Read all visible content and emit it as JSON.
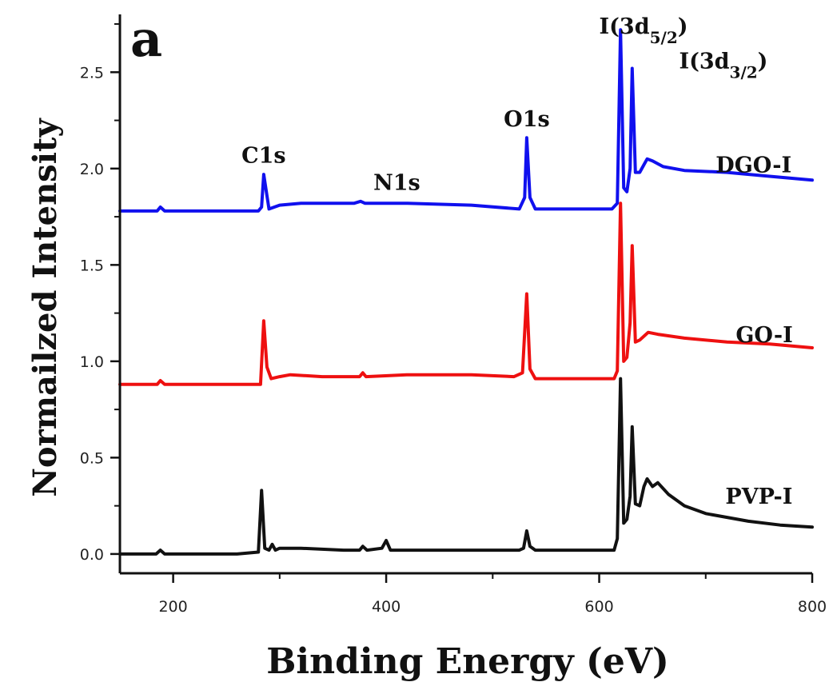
{
  "chart_data": {
    "type": "line",
    "panel_label": "a",
    "xlabel": "Binding Energy (eV)",
    "ylabel": "Normailzed Intensity",
    "xlim": [
      150,
      800
    ],
    "ylim": [
      -0.1,
      2.8
    ],
    "xticks": [
      200,
      400,
      600,
      800
    ],
    "yticks": [
      0.0,
      0.5,
      1.0,
      1.5,
      2.0,
      2.5
    ],
    "ytick_labels": [
      "0.0",
      "0.5",
      "1.0",
      "1.5",
      "2.0",
      "2.5"
    ],
    "grid": false,
    "legend": "none",
    "series": [
      {
        "name": "DGO-I",
        "color": "#1010ee",
        "points": [
          [
            150,
            1.78
          ],
          [
            185,
            1.78
          ],
          [
            188,
            1.8
          ],
          [
            192,
            1.78
          ],
          [
            260,
            1.78
          ],
          [
            280,
            1.78
          ],
          [
            283,
            1.8
          ],
          [
            285,
            1.97
          ],
          [
            288,
            1.86
          ],
          [
            290,
            1.79
          ],
          [
            300,
            1.81
          ],
          [
            320,
            1.82
          ],
          [
            370,
            1.82
          ],
          [
            376,
            1.83
          ],
          [
            380,
            1.82
          ],
          [
            420,
            1.82
          ],
          [
            480,
            1.81
          ],
          [
            525,
            1.79
          ],
          [
            530,
            1.85
          ],
          [
            532,
            2.16
          ],
          [
            535,
            1.85
          ],
          [
            540,
            1.79
          ],
          [
            600,
            1.79
          ],
          [
            612,
            1.79
          ],
          [
            617,
            1.82
          ],
          [
            620,
            2.72
          ],
          [
            623,
            1.9
          ],
          [
            626,
            1.88
          ],
          [
            629,
            2.0
          ],
          [
            631,
            2.52
          ],
          [
            634,
            1.98
          ],
          [
            638,
            1.98
          ],
          [
            642,
            2.02
          ],
          [
            645,
            2.05
          ],
          [
            650,
            2.04
          ],
          [
            660,
            2.01
          ],
          [
            680,
            1.99
          ],
          [
            720,
            1.98
          ],
          [
            760,
            1.96
          ],
          [
            800,
            1.94
          ]
        ],
        "label_xy": [
          745,
          1.98
        ]
      },
      {
        "name": "GO-I",
        "color": "#ee1010",
        "points": [
          [
            150,
            0.88
          ],
          [
            185,
            0.88
          ],
          [
            188,
            0.9
          ],
          [
            192,
            0.88
          ],
          [
            270,
            0.88
          ],
          [
            282,
            0.88
          ],
          [
            285,
            1.21
          ],
          [
            288,
            0.97
          ],
          [
            292,
            0.91
          ],
          [
            300,
            0.92
          ],
          [
            310,
            0.93
          ],
          [
            340,
            0.92
          ],
          [
            375,
            0.92
          ],
          [
            378,
            0.94
          ],
          [
            381,
            0.92
          ],
          [
            420,
            0.93
          ],
          [
            480,
            0.93
          ],
          [
            520,
            0.92
          ],
          [
            528,
            0.94
          ],
          [
            532,
            1.35
          ],
          [
            535,
            0.96
          ],
          [
            540,
            0.91
          ],
          [
            600,
            0.91
          ],
          [
            614,
            0.91
          ],
          [
            617,
            0.95
          ],
          [
            620,
            1.82
          ],
          [
            623,
            1.0
          ],
          [
            626,
            1.02
          ],
          [
            629,
            1.2
          ],
          [
            631,
            1.6
          ],
          [
            634,
            1.1
          ],
          [
            638,
            1.11
          ],
          [
            642,
            1.13
          ],
          [
            646,
            1.15
          ],
          [
            655,
            1.14
          ],
          [
            680,
            1.12
          ],
          [
            720,
            1.1
          ],
          [
            760,
            1.09
          ],
          [
            800,
            1.07
          ]
        ],
        "label_xy": [
          755,
          1.1
        ]
      },
      {
        "name": "PVP-I",
        "color": "#111111",
        "points": [
          [
            150,
            0.0
          ],
          [
            184,
            0.0
          ],
          [
            188,
            0.02
          ],
          [
            192,
            0.0
          ],
          [
            260,
            0.0
          ],
          [
            280,
            0.01
          ],
          [
            283,
            0.33
          ],
          [
            286,
            0.03
          ],
          [
            290,
            0.02
          ],
          [
            293,
            0.05
          ],
          [
            296,
            0.02
          ],
          [
            300,
            0.03
          ],
          [
            320,
            0.03
          ],
          [
            360,
            0.02
          ],
          [
            375,
            0.02
          ],
          [
            378,
            0.04
          ],
          [
            382,
            0.02
          ],
          [
            396,
            0.03
          ],
          [
            400,
            0.07
          ],
          [
            404,
            0.02
          ],
          [
            450,
            0.02
          ],
          [
            500,
            0.02
          ],
          [
            525,
            0.02
          ],
          [
            529,
            0.03
          ],
          [
            532,
            0.12
          ],
          [
            535,
            0.04
          ],
          [
            540,
            0.02
          ],
          [
            600,
            0.02
          ],
          [
            614,
            0.02
          ],
          [
            617,
            0.08
          ],
          [
            620,
            0.91
          ],
          [
            623,
            0.16
          ],
          [
            626,
            0.18
          ],
          [
            629,
            0.3
          ],
          [
            631,
            0.66
          ],
          [
            634,
            0.26
          ],
          [
            638,
            0.25
          ],
          [
            642,
            0.35
          ],
          [
            645,
            0.39
          ],
          [
            650,
            0.35
          ],
          [
            655,
            0.37
          ],
          [
            665,
            0.31
          ],
          [
            680,
            0.25
          ],
          [
            700,
            0.21
          ],
          [
            740,
            0.17
          ],
          [
            770,
            0.15
          ],
          [
            800,
            0.14
          ]
        ],
        "label_xy": [
          750,
          0.26
        ]
      }
    ],
    "annotations": [
      {
        "id": "c1s",
        "text": "C1s",
        "x": 285,
        "y": 2.03
      },
      {
        "id": "n1s",
        "text": "N1s",
        "x": 410,
        "y": 1.89
      },
      {
        "id": "o1s",
        "text": "O1s",
        "x": 532,
        "y": 2.22
      },
      {
        "id": "i-3d52",
        "text": "I(3d",
        "sub": "5/2",
        "after": ")",
        "x": 600,
        "y": 2.7
      },
      {
        "id": "i-3d32",
        "text": "I(3d",
        "sub": "3/2",
        "after": ")",
        "x": 675,
        "y": 2.52
      }
    ]
  }
}
